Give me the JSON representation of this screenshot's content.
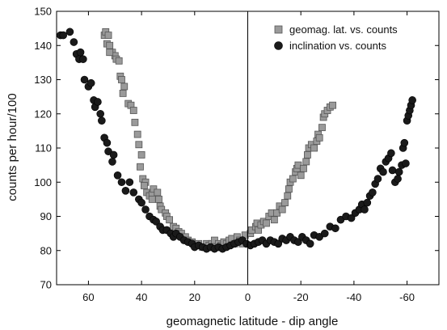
{
  "chart_data": {
    "type": "scatter",
    "xlabel": "geomagnetic latitude - dip angle",
    "ylabel": "counts per hour/100",
    "xlim": [
      72,
      -72
    ],
    "ylim": [
      70,
      150
    ],
    "x_ticks": [
      60,
      40,
      20,
      0,
      -20,
      -40,
      -60
    ],
    "x_tick_labels": [
      "60",
      "40",
      "20",
      "0",
      "-20",
      "-40",
      "-60"
    ],
    "y_ticks": [
      70,
      80,
      90,
      100,
      110,
      120,
      130,
      140,
      150
    ],
    "y_tick_labels": [
      "70",
      "80",
      "90",
      "100",
      "110",
      "120",
      "130",
      "140",
      "150"
    ],
    "reference_line_x": 0,
    "grid": false,
    "legend_position": "top-right",
    "series": [
      {
        "name": "geomag. lat. vs. counts",
        "marker": "square",
        "color": "#9a9a9a",
        "points": [
          [
            54,
            143
          ],
          [
            53.5,
            144
          ],
          [
            52.5,
            143
          ],
          [
            53,
            140.5
          ],
          [
            52,
            140
          ],
          [
            51,
            138
          ],
          [
            50,
            137
          ],
          [
            52,
            138
          ],
          [
            49.5,
            136
          ],
          [
            48.5,
            135.5
          ],
          [
            48,
            131
          ],
          [
            47.5,
            130
          ],
          [
            46.5,
            128
          ],
          [
            47,
            126
          ],
          [
            45,
            123
          ],
          [
            44,
            122.5
          ],
          [
            43,
            121
          ],
          [
            42.5,
            117.5
          ],
          [
            41.5,
            114
          ],
          [
            41,
            111
          ],
          [
            40,
            108
          ],
          [
            40.5,
            104.5
          ],
          [
            39.5,
            101
          ],
          [
            38.5,
            100
          ],
          [
            39,
            99
          ],
          [
            38,
            97
          ],
          [
            37,
            96
          ],
          [
            36,
            96.5
          ],
          [
            35.5,
            98
          ],
          [
            36,
            95
          ],
          [
            34,
            97
          ],
          [
            33.5,
            95
          ],
          [
            33,
            93
          ],
          [
            32.5,
            92
          ],
          [
            31,
            91
          ],
          [
            30.5,
            90
          ],
          [
            29.5,
            89
          ],
          [
            28,
            87
          ],
          [
            27,
            86.5
          ],
          [
            26,
            85.5
          ],
          [
            25,
            85
          ],
          [
            23.5,
            84
          ],
          [
            22.5,
            83
          ],
          [
            21,
            82.5
          ],
          [
            20.5,
            82
          ],
          [
            19.5,
            81.5
          ],
          [
            18.5,
            82
          ],
          [
            17,
            81
          ],
          [
            15.5,
            82
          ],
          [
            14.5,
            81.5
          ],
          [
            13.5,
            82
          ],
          [
            12.5,
            83
          ],
          [
            11,
            82
          ],
          [
            10,
            81.5
          ],
          [
            9,
            82.5
          ],
          [
            8,
            82
          ],
          [
            7,
            83
          ],
          [
            6,
            83.5
          ],
          [
            5,
            82
          ],
          [
            4,
            84
          ],
          [
            3,
            83
          ],
          [
            2,
            82
          ],
          [
            1,
            84.5
          ],
          [
            -1,
            85
          ],
          [
            -1.5,
            86
          ],
          [
            -3,
            87
          ],
          [
            -3.5,
            88
          ],
          [
            -4,
            86
          ],
          [
            -5,
            87.5
          ],
          [
            -6,
            88.5
          ],
          [
            -7,
            88
          ],
          [
            -8,
            90
          ],
          [
            -9,
            91
          ],
          [
            -10,
            89
          ],
          [
            -11,
            91
          ],
          [
            -12,
            93
          ],
          [
            -13,
            92
          ],
          [
            -14,
            94
          ],
          [
            -15,
            96
          ],
          [
            -15.5,
            98
          ],
          [
            -16,
            100
          ],
          [
            -17,
            101
          ],
          [
            -18,
            103
          ],
          [
            -18.5,
            104
          ],
          [
            -19,
            105
          ],
          [
            -20,
            102
          ],
          [
            -21,
            104
          ],
          [
            -22,
            106
          ],
          [
            -22.5,
            108
          ],
          [
            -23,
            110
          ],
          [
            -24,
            111
          ],
          [
            -25,
            110
          ],
          [
            -26,
            112
          ],
          [
            -26.5,
            114
          ],
          [
            -27,
            113
          ],
          [
            -28,
            116
          ],
          [
            -28.5,
            119
          ],
          [
            -29,
            120
          ],
          [
            -30,
            121
          ],
          [
            -31,
            122
          ],
          [
            -32,
            122.5
          ]
        ]
      },
      {
        "name": "inclination vs. counts",
        "marker": "circle",
        "color": "#1a1a1a",
        "points": [
          [
            70.5,
            143
          ],
          [
            69.5,
            143
          ],
          [
            67,
            144
          ],
          [
            65.5,
            141
          ],
          [
            64.5,
            137.5
          ],
          [
            63.5,
            136
          ],
          [
            63,
            138
          ],
          [
            62,
            136
          ],
          [
            61.5,
            130
          ],
          [
            60,
            128
          ],
          [
            59,
            129
          ],
          [
            58,
            124
          ],
          [
            57.5,
            122
          ],
          [
            56.5,
            123.5
          ],
          [
            55.5,
            120
          ],
          [
            55,
            118
          ],
          [
            54,
            113
          ],
          [
            53,
            111.5
          ],
          [
            52.5,
            109
          ],
          [
            51,
            106
          ],
          [
            50.5,
            108
          ],
          [
            49,
            102
          ],
          [
            47.5,
            100
          ],
          [
            46,
            97.5
          ],
          [
            44.5,
            100
          ],
          [
            43,
            97
          ],
          [
            41,
            95
          ],
          [
            40,
            94
          ],
          [
            38.5,
            92
          ],
          [
            37,
            90
          ],
          [
            35.5,
            89
          ],
          [
            34.5,
            88.5
          ],
          [
            33,
            87
          ],
          [
            32,
            86
          ],
          [
            30.5,
            86
          ],
          [
            29,
            85
          ],
          [
            28,
            84
          ],
          [
            27,
            85
          ],
          [
            25.5,
            84
          ],
          [
            24,
            83
          ],
          [
            22.5,
            82.5
          ],
          [
            21,
            82
          ],
          [
            20,
            81
          ],
          [
            18.5,
            81.5
          ],
          [
            17,
            81
          ],
          [
            15.5,
            80.5
          ],
          [
            14,
            81
          ],
          [
            12.5,
            80.5
          ],
          [
            11,
            81
          ],
          [
            9.5,
            80.5
          ],
          [
            8,
            81
          ],
          [
            6.5,
            81.5
          ],
          [
            5,
            82
          ],
          [
            3.5,
            82.5
          ],
          [
            2,
            83
          ],
          [
            0.5,
            82
          ],
          [
            -1,
            81.5
          ],
          [
            -2.5,
            82
          ],
          [
            -4,
            82.5
          ],
          [
            -5.5,
            83
          ],
          [
            -7,
            82
          ],
          [
            -8.5,
            83
          ],
          [
            -10,
            82.5
          ],
          [
            -11.5,
            82
          ],
          [
            -13,
            83.5
          ],
          [
            -14.5,
            83
          ],
          [
            -16,
            84
          ],
          [
            -17.5,
            83
          ],
          [
            -19,
            82.5
          ],
          [
            -20.5,
            84
          ],
          [
            -22,
            83
          ],
          [
            -23.5,
            82
          ],
          [
            -25,
            84.5
          ],
          [
            -27,
            84
          ],
          [
            -29,
            85
          ],
          [
            -31,
            87
          ],
          [
            -33,
            86.5
          ],
          [
            -35,
            89
          ],
          [
            -37,
            90
          ],
          [
            -39,
            89.5
          ],
          [
            -40.5,
            91
          ],
          [
            -42,
            92
          ],
          [
            -43,
            93.5
          ],
          [
            -44,
            92
          ],
          [
            -45,
            94
          ],
          [
            -46,
            96
          ],
          [
            -47,
            97
          ],
          [
            -48,
            99.5
          ],
          [
            -49,
            101
          ],
          [
            -50,
            104
          ],
          [
            -51,
            103
          ],
          [
            -52,
            106
          ],
          [
            -53,
            107
          ],
          [
            -54,
            108.5
          ],
          [
            -54.5,
            103.5
          ],
          [
            -55.5,
            100
          ],
          [
            -56.5,
            101
          ],
          [
            -57,
            103
          ],
          [
            -58,
            105
          ],
          [
            -58.5,
            110
          ],
          [
            -59,
            111.5
          ],
          [
            -59.5,
            105.5
          ],
          [
            -60,
            118
          ],
          [
            -60.5,
            119.5
          ],
          [
            -61,
            121
          ],
          [
            -61.5,
            122.5
          ],
          [
            -62,
            124
          ]
        ]
      }
    ]
  }
}
